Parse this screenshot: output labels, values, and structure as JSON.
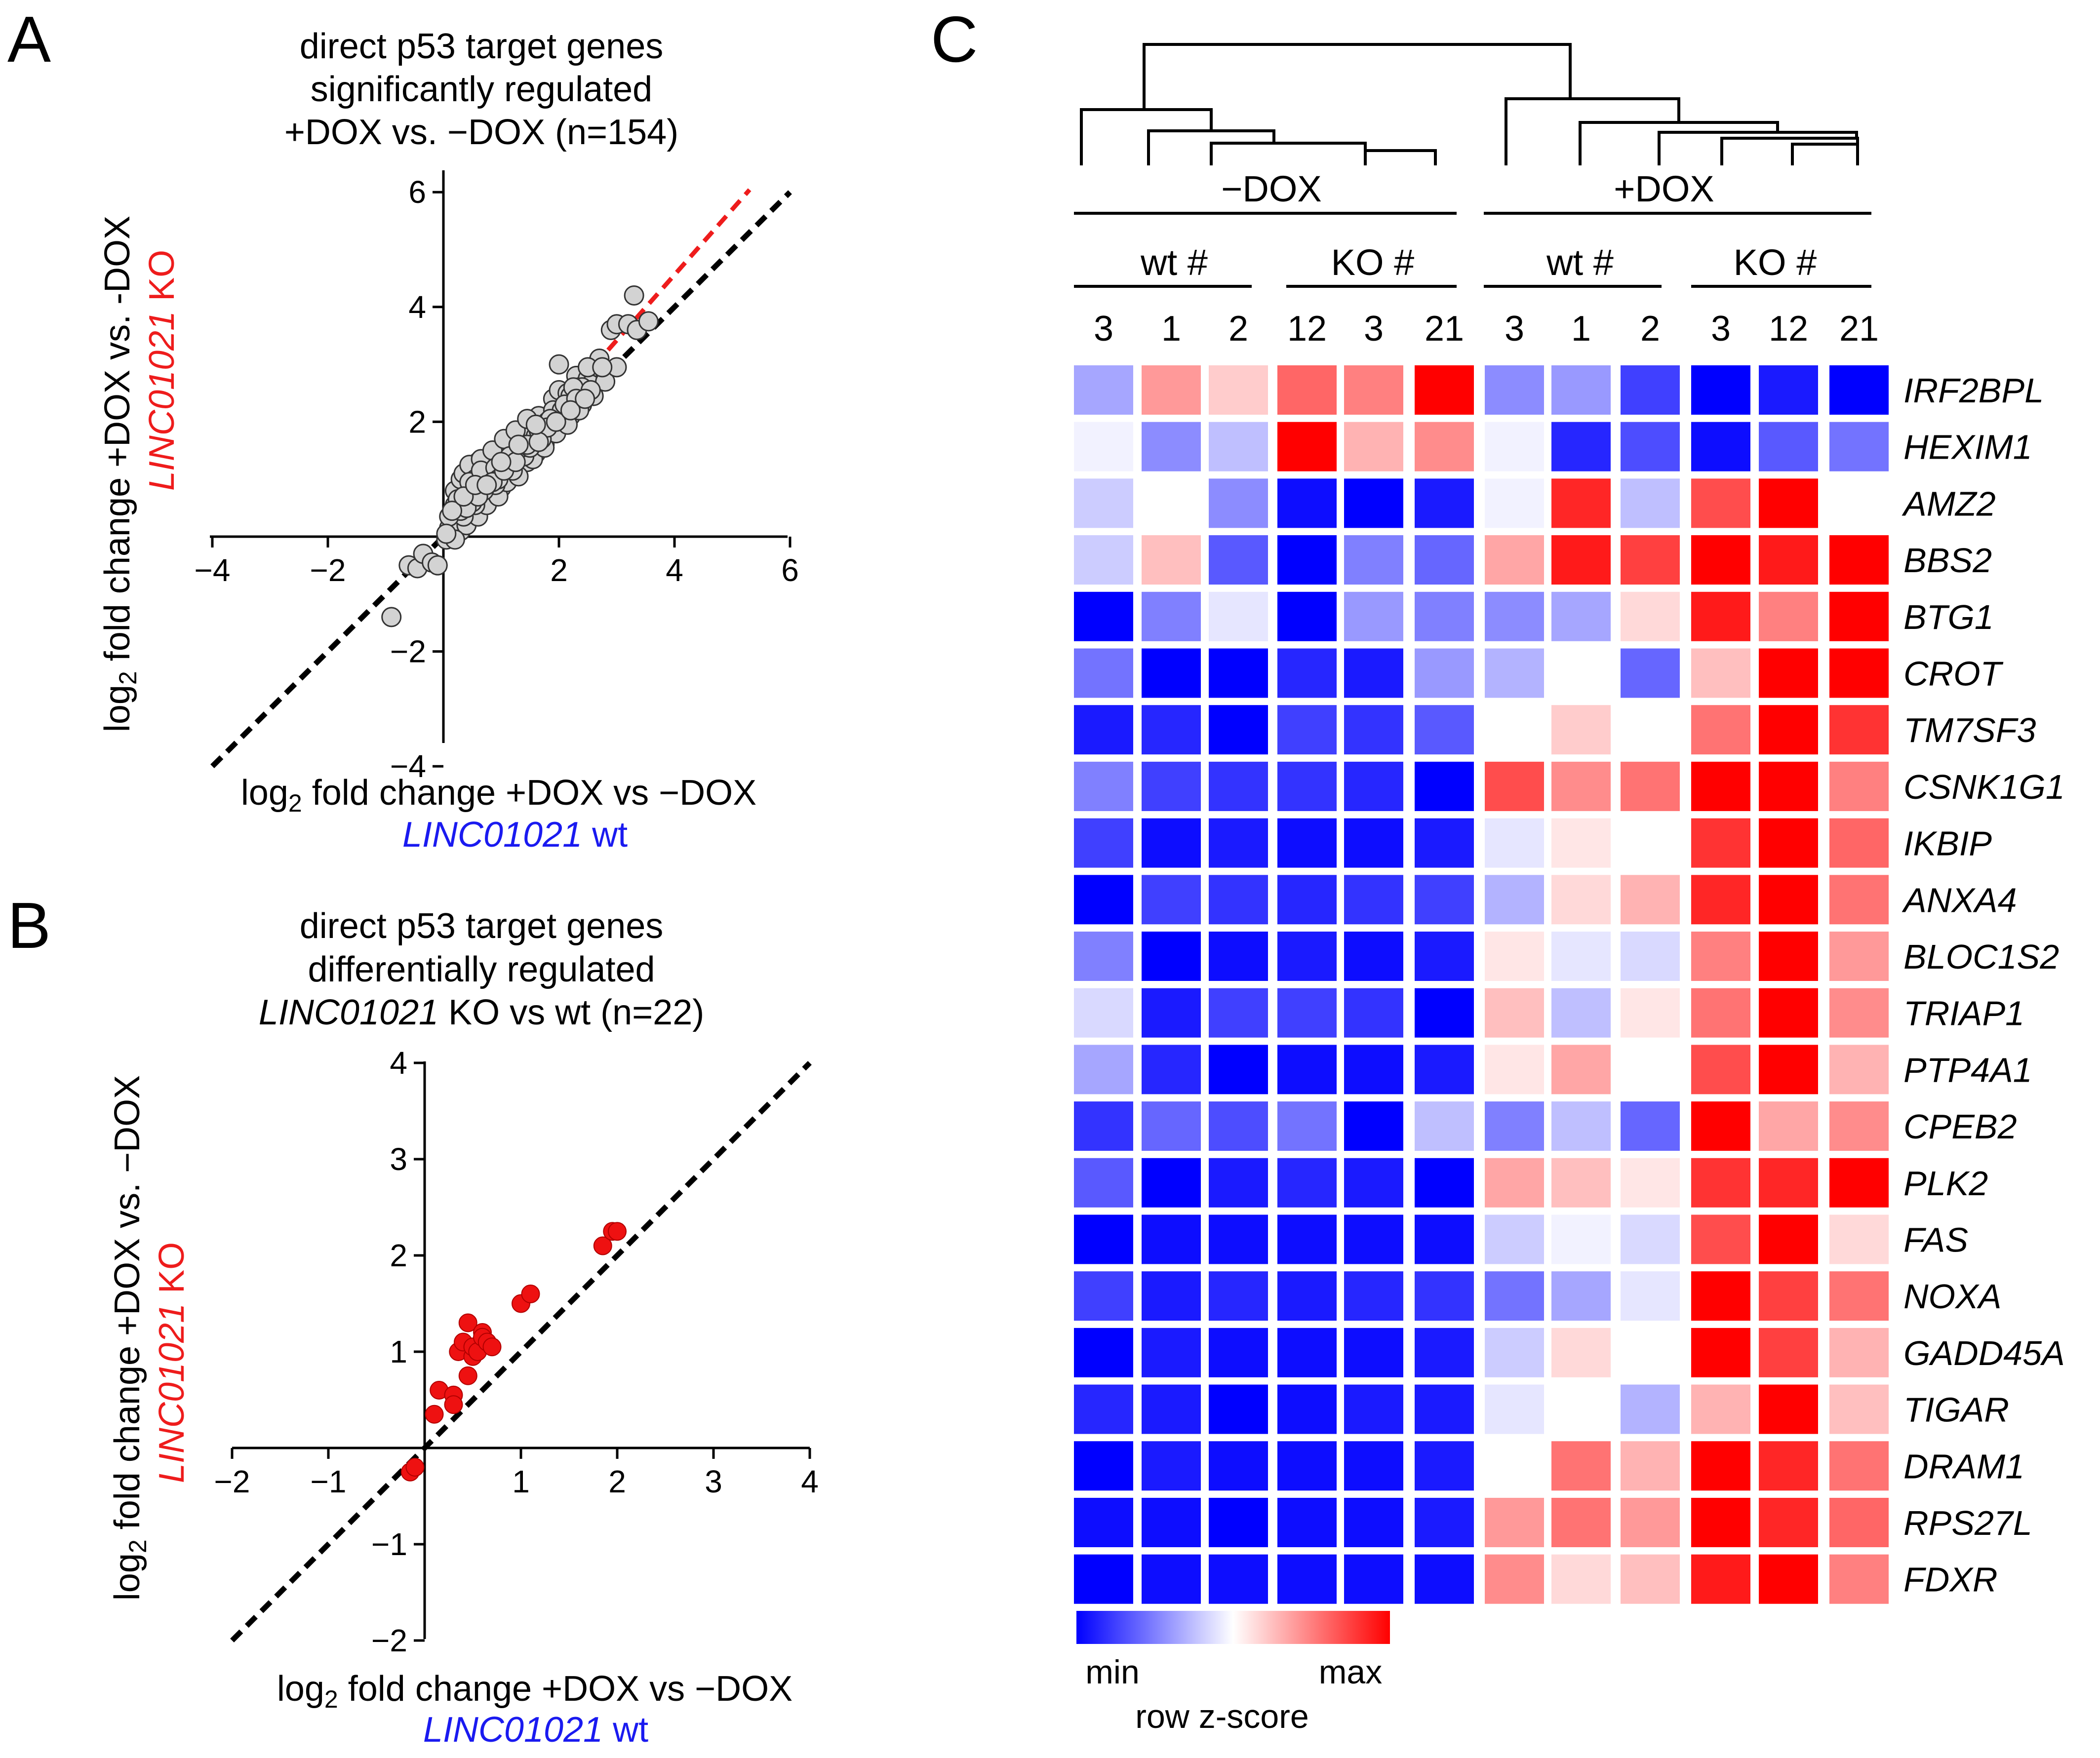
{
  "panel_letters": {
    "a": "A",
    "b": "B",
    "c": "C"
  },
  "chart_data": [
    {
      "id": "A",
      "type": "scatter",
      "title_lines": [
        "direct p53 target genes",
        "significantly regulated",
        "+DOX vs. −DOX (n=154)"
      ],
      "xlabel_line1_prefix": "log",
      "xlabel_sub": "2",
      "xlabel_line1_suffix": " fold change +DOX vs −DOX",
      "xlabel_line2_gene": "LINC01021",
      "xlabel_line2_rest": " wt",
      "ylabel_line1_prefix": "log",
      "ylabel_sub": "2",
      "ylabel_line1_suffix": " fold change +DOX vs. -DOX",
      "ylabel_line2_gene": "LINC01021",
      "ylabel_line2_rest": " KO",
      "xlim": [
        -4,
        6
      ],
      "ylim": [
        -4,
        6
      ],
      "x_ticks": [
        {
          "v": -4,
          "label": "−4"
        },
        {
          "v": -2,
          "label": "−2"
        },
        {
          "v": 2,
          "label": "2"
        },
        {
          "v": 4,
          "label": "4"
        },
        {
          "v": 6,
          "label": "6"
        }
      ],
      "y_ticks": [
        {
          "v": -4,
          "label": "−4"
        },
        {
          "v": -2,
          "label": "−2"
        },
        {
          "v": 2,
          "label": "2"
        },
        {
          "v": 4,
          "label": "4"
        },
        {
          "v": 6,
          "label": "6"
        }
      ],
      "identity_line": {
        "color": "#000000",
        "x": [
          -4,
          6
        ]
      },
      "fit_line": {
        "color": "#ee1c1c",
        "x": [
          0,
          5.3
        ],
        "slope": 1.14,
        "intercept": 0
      },
      "point_color": "#d3d3d3",
      "points": [
        [
          -0.9,
          -1.4
        ],
        [
          -0.6,
          -0.5
        ],
        [
          -0.45,
          -0.55
        ],
        [
          -0.35,
          -0.3
        ],
        [
          -0.2,
          -0.45
        ],
        [
          -0.1,
          -0.5
        ],
        [
          0.05,
          -0.05
        ],
        [
          0.1,
          0.15
        ],
        [
          0.15,
          0.3
        ],
        [
          0.2,
          0.55
        ],
        [
          0.2,
          0.2
        ],
        [
          0.25,
          0.4
        ],
        [
          0.3,
          0.6
        ],
        [
          0.3,
          0.1
        ],
        [
          0.35,
          0.5
        ],
        [
          0.4,
          0.85
        ],
        [
          0.4,
          0.3
        ],
        [
          0.45,
          0.6
        ],
        [
          0.5,
          1.1
        ],
        [
          0.5,
          0.45
        ],
        [
          0.55,
          0.75
        ],
        [
          0.6,
          1.3
        ],
        [
          0.6,
          0.55
        ],
        [
          0.65,
          0.9
        ],
        [
          0.7,
          1.0
        ],
        [
          0.7,
          0.65
        ],
        [
          0.75,
          1.2
        ],
        [
          0.8,
          0.8
        ],
        [
          0.85,
          1.1
        ],
        [
          0.9,
          0.95
        ],
        [
          0.95,
          1.35
        ],
        [
          1.0,
          1.15
        ],
        [
          1.0,
          0.85
        ],
        [
          1.05,
          1.45
        ],
        [
          1.1,
          1.25
        ],
        [
          1.15,
          1.05
        ],
        [
          1.2,
          1.6
        ],
        [
          1.25,
          1.4
        ],
        [
          1.3,
          1.2
        ],
        [
          1.35,
          1.75
        ],
        [
          1.4,
          1.5
        ],
        [
          1.45,
          1.3
        ],
        [
          1.5,
          1.9
        ],
        [
          1.55,
          1.65
        ],
        [
          1.6,
          1.45
        ],
        [
          1.65,
          2.1
        ],
        [
          1.7,
          1.8
        ],
        [
          1.75,
          1.6
        ],
        [
          1.8,
          2.0
        ],
        [
          1.85,
          1.85
        ],
        [
          1.9,
          2.4
        ],
        [
          1.95,
          2.15
        ],
        [
          2.0,
          2.55
        ],
        [
          2.05,
          1.95
        ],
        [
          2.1,
          2.25
        ],
        [
          2.15,
          2.5
        ],
        [
          2.2,
          2.1
        ],
        [
          2.25,
          2.35
        ],
        [
          2.3,
          2.8
        ],
        [
          2.35,
          2.6
        ],
        [
          2.4,
          2.3
        ],
        [
          2.45,
          2.5
        ],
        [
          2.5,
          2.75
        ],
        [
          2.55,
          2.65
        ],
        [
          2.0,
          3.0
        ],
        [
          2.1,
          2.05
        ],
        [
          2.2,
          2.45
        ],
        [
          1.9,
          2.2
        ],
        [
          2.7,
          3.1
        ],
        [
          2.9,
          3.6
        ],
        [
          3.0,
          3.7
        ],
        [
          3.2,
          3.7
        ],
        [
          3.3,
          4.2
        ],
        [
          3.35,
          3.6
        ],
        [
          3.55,
          3.75
        ],
        [
          0.2,
          0.8
        ],
        [
          0.3,
          1.0
        ],
        [
          0.35,
          1.1
        ],
        [
          0.45,
          1.25
        ],
        [
          0.55,
          1.0
        ],
        [
          0.65,
          1.35
        ],
        [
          0.85,
          1.5
        ],
        [
          1.05,
          1.7
        ],
        [
          1.25,
          1.85
        ],
        [
          1.45,
          2.05
        ],
        [
          0.15,
          0.05
        ],
        [
          0.25,
          0.25
        ],
        [
          0.4,
          0.2
        ],
        [
          0.6,
          0.35
        ],
        [
          0.75,
          0.55
        ],
        [
          0.95,
          0.7
        ],
        [
          1.1,
          0.95
        ],
        [
          1.3,
          1.05
        ],
        [
          1.55,
          1.35
        ],
        [
          1.75,
          1.55
        ],
        [
          1.95,
          1.8
        ],
        [
          2.15,
          1.95
        ],
        [
          2.35,
          2.2
        ],
        [
          2.6,
          2.45
        ],
        [
          2.8,
          2.7
        ],
        [
          3.0,
          2.95
        ],
        [
          0.5,
          0.75
        ],
        [
          0.8,
          1.05
        ],
        [
          1.2,
          1.35
        ],
        [
          1.6,
          1.75
        ],
        [
          2.4,
          2.6
        ],
        [
          0.35,
          0.35
        ],
        [
          0.55,
          0.55
        ],
        [
          0.9,
          0.9
        ],
        [
          1.4,
          1.4
        ],
        [
          1.7,
          1.7
        ],
        [
          2.05,
          2.2
        ],
        [
          0.1,
          0.35
        ],
        [
          0.25,
          0.65
        ],
        [
          0.45,
          0.95
        ],
        [
          0.65,
          1.15
        ],
        [
          0.9,
          1.2
        ],
        [
          1.15,
          1.4
        ],
        [
          1.35,
          1.55
        ],
        [
          1.65,
          1.85
        ],
        [
          1.85,
          2.05
        ],
        [
          2.25,
          2.6
        ],
        [
          2.5,
          2.95
        ],
        [
          0.2,
          -0.05
        ],
        [
          0.05,
          0.05
        ],
        [
          0.3,
          0.45
        ],
        [
          0.5,
          0.6
        ],
        [
          0.7,
          0.8
        ],
        [
          0.95,
          1.0
        ],
        [
          1.2,
          1.15
        ],
        [
          1.5,
          1.55
        ],
        [
          1.8,
          1.9
        ],
        [
          2.1,
          2.3
        ],
        [
          2.3,
          2.4
        ],
        [
          2.55,
          2.55
        ],
        [
          2.75,
          2.95
        ],
        [
          0.4,
          0.5
        ],
        [
          0.6,
          0.7
        ],
        [
          0.85,
          0.95
        ],
        [
          1.05,
          1.15
        ],
        [
          1.25,
          1.3
        ],
        [
          1.45,
          1.6
        ],
        [
          1.65,
          1.65
        ],
        [
          1.95,
          2.0
        ],
        [
          2.2,
          2.2
        ],
        [
          2.45,
          2.4
        ],
        [
          0.15,
          0.45
        ],
        [
          0.35,
          0.7
        ],
        [
          0.55,
          0.9
        ],
        [
          0.75,
          0.9
        ],
        [
          1.0,
          1.3
        ],
        [
          1.3,
          1.6
        ],
        [
          1.6,
          1.95
        ]
      ]
    },
    {
      "id": "B",
      "type": "scatter",
      "title_lines": [
        "direct p53 target genes",
        "differentially regulated"
      ],
      "title_line3_gene": "LINC01021",
      "title_line3_rest": " KO vs wt (n=22)",
      "xlabel_line1_prefix": "log",
      "xlabel_sub": "2",
      "xlabel_line1_suffix": " fold change  +DOX vs −DOX",
      "xlabel_line2_gene": "LINC01021",
      "xlabel_line2_rest": " wt",
      "ylabel_line1_prefix": "log",
      "ylabel_sub": "2",
      "ylabel_line1_suffix": " fold change +DOX vs. −DOX",
      "ylabel_line2_gene": "LINC01021",
      "ylabel_line2_rest": " KO",
      "xlim": [
        -2,
        4
      ],
      "ylim": [
        -2,
        4
      ],
      "x_ticks": [
        {
          "v": -2,
          "label": "−2"
        },
        {
          "v": -1,
          "label": "−1"
        },
        {
          "v": 1,
          "label": "1"
        },
        {
          "v": 2,
          "label": "2"
        },
        {
          "v": 3,
          "label": "3"
        },
        {
          "v": 4,
          "label": "4"
        }
      ],
      "y_ticks": [
        {
          "v": -2,
          "label": "−2"
        },
        {
          "v": -1,
          "label": "−1"
        },
        {
          "v": 1,
          "label": "1"
        },
        {
          "v": 2,
          "label": "2"
        },
        {
          "v": 3,
          "label": "3"
        },
        {
          "v": 4,
          "label": "4"
        }
      ],
      "identity_line": {
        "color": "#000000",
        "x": [
          -2,
          4
        ]
      },
      "point_color": "#ee1111",
      "points": [
        [
          -0.15,
          -0.25
        ],
        [
          -0.1,
          -0.2
        ],
        [
          0.1,
          0.35
        ],
        [
          0.15,
          0.6
        ],
        [
          0.3,
          0.55
        ],
        [
          0.3,
          0.45
        ],
        [
          0.35,
          1.0
        ],
        [
          0.4,
          1.1
        ],
        [
          0.45,
          1.3
        ],
        [
          0.45,
          0.75
        ],
        [
          0.5,
          0.95
        ],
        [
          0.5,
          1.05
        ],
        [
          0.55,
          1.0
        ],
        [
          0.6,
          1.2
        ],
        [
          0.6,
          1.15
        ],
        [
          0.65,
          1.1
        ],
        [
          0.7,
          1.05
        ],
        [
          1.0,
          1.5
        ],
        [
          1.1,
          1.6
        ],
        [
          1.85,
          2.1
        ],
        [
          1.95,
          2.25
        ],
        [
          2.0,
          2.25
        ]
      ]
    },
    {
      "id": "C",
      "type": "heatmap",
      "group_labels": [
        "−DOX",
        "+DOX"
      ],
      "subgroup_labels": [
        "wt #",
        "KO #",
        "wt #",
        "KO #"
      ],
      "columns": [
        "3",
        "1",
        "2",
        "12",
        "3",
        "21",
        "3",
        "1",
        "2",
        "3",
        "12",
        "21"
      ],
      "rows": [
        "IRF2BPL",
        "HEXIM1",
        "AMZ2",
        "BBS2",
        "BTG1",
        "CROT",
        "TM7SF3",
        "CSNK1G1",
        "IKBIP",
        "ANXA4",
        "BLOC1S2",
        "TRIAP1",
        "PTP4A1",
        "CPEB2",
        "PLK2",
        "FAS",
        "NOXA",
        "GADD45A",
        "TIGAR",
        "DRAM1",
        "RPS27L",
        "FDXR"
      ],
      "values": [
        [
          -0.35,
          0.4,
          0.2,
          0.6,
          0.5,
          1.0,
          -0.45,
          -0.4,
          -0.75,
          -1.0,
          -0.9,
          -1.0
        ],
        [
          -0.05,
          -0.45,
          -0.25,
          1.0,
          0.3,
          0.45,
          -0.05,
          -0.85,
          -0.7,
          -0.95,
          -0.65,
          -0.55
        ],
        [
          -0.2,
          0.0,
          -0.45,
          -0.95,
          -1.0,
          -0.9,
          -0.05,
          0.85,
          -0.25,
          0.7,
          1.0,
          0.0
        ],
        [
          -0.2,
          0.25,
          -0.65,
          -1.0,
          -0.5,
          -0.6,
          0.35,
          0.9,
          0.75,
          1.0,
          0.9,
          1.0
        ],
        [
          -1.0,
          -0.5,
          -0.1,
          -1.0,
          -0.4,
          -0.5,
          -0.45,
          -0.35,
          0.15,
          0.9,
          0.5,
          1.0
        ],
        [
          -0.55,
          -1.0,
          -1.0,
          -0.85,
          -0.9,
          -0.4,
          -0.3,
          0.0,
          -0.6,
          0.25,
          1.0,
          1.0
        ],
        [
          -0.9,
          -0.85,
          -1.0,
          -0.75,
          -0.8,
          -0.65,
          0.0,
          0.2,
          0.0,
          0.55,
          1.0,
          0.8
        ],
        [
          -0.5,
          -0.75,
          -0.8,
          -0.8,
          -0.85,
          -1.0,
          0.7,
          0.45,
          0.55,
          1.0,
          1.0,
          0.5
        ],
        [
          -0.75,
          -0.95,
          -0.9,
          -0.95,
          -0.95,
          -0.9,
          -0.1,
          0.1,
          0.0,
          0.8,
          1.0,
          0.6
        ],
        [
          -1.0,
          -0.75,
          -0.8,
          -0.85,
          -0.8,
          -0.75,
          -0.3,
          0.15,
          0.3,
          0.85,
          1.0,
          0.55
        ],
        [
          -0.5,
          -1.0,
          -0.95,
          -0.9,
          -0.95,
          -0.9,
          0.1,
          -0.1,
          -0.15,
          0.5,
          1.0,
          0.4
        ],
        [
          -0.15,
          -0.9,
          -0.75,
          -0.75,
          -0.8,
          -1.0,
          0.25,
          -0.25,
          0.1,
          0.55,
          1.0,
          0.45
        ],
        [
          -0.35,
          -0.85,
          -1.0,
          -0.95,
          -0.95,
          -0.9,
          0.1,
          0.35,
          0.0,
          0.7,
          1.0,
          0.3
        ],
        [
          -0.8,
          -0.6,
          -0.7,
          -0.55,
          -1.0,
          -0.25,
          -0.5,
          -0.25,
          -0.6,
          1.0,
          0.35,
          0.45
        ],
        [
          -0.65,
          -1.0,
          -0.9,
          -0.85,
          -0.9,
          -1.0,
          0.35,
          0.25,
          0.1,
          0.8,
          0.85,
          1.0
        ],
        [
          -1.0,
          -0.95,
          -0.95,
          -0.95,
          -0.95,
          -0.95,
          -0.2,
          -0.05,
          -0.15,
          0.7,
          1.0,
          0.15
        ],
        [
          -0.75,
          -0.9,
          -0.85,
          -0.9,
          -0.85,
          -0.8,
          -0.55,
          -0.35,
          -0.1,
          1.0,
          0.75,
          0.55
        ],
        [
          -1.0,
          -0.9,
          -0.95,
          -0.95,
          -0.95,
          -0.9,
          -0.2,
          0.15,
          0.0,
          1.0,
          0.75,
          0.3
        ],
        [
          -0.85,
          -0.9,
          -1.0,
          -0.95,
          -0.9,
          -0.9,
          -0.1,
          0.0,
          -0.3,
          0.3,
          1.0,
          0.25
        ],
        [
          -1.0,
          -0.9,
          -0.95,
          -0.95,
          -0.95,
          -0.9,
          0.0,
          0.55,
          0.3,
          1.0,
          0.85,
          0.55
        ],
        [
          -0.95,
          -0.95,
          -1.0,
          -0.95,
          -0.95,
          -0.9,
          0.4,
          0.55,
          0.4,
          1.0,
          0.85,
          0.6
        ],
        [
          -1.0,
          -0.95,
          -0.95,
          -0.95,
          -0.95,
          -0.95,
          0.45,
          0.15,
          0.25,
          0.9,
          1.0,
          0.5
        ]
      ],
      "colormap": {
        "min": "#0000ff",
        "mid": "#ffffff",
        "max": "#ff0000"
      },
      "legend": {
        "min_label": "min",
        "max_label": "max",
        "title": "row z-score"
      }
    }
  ]
}
